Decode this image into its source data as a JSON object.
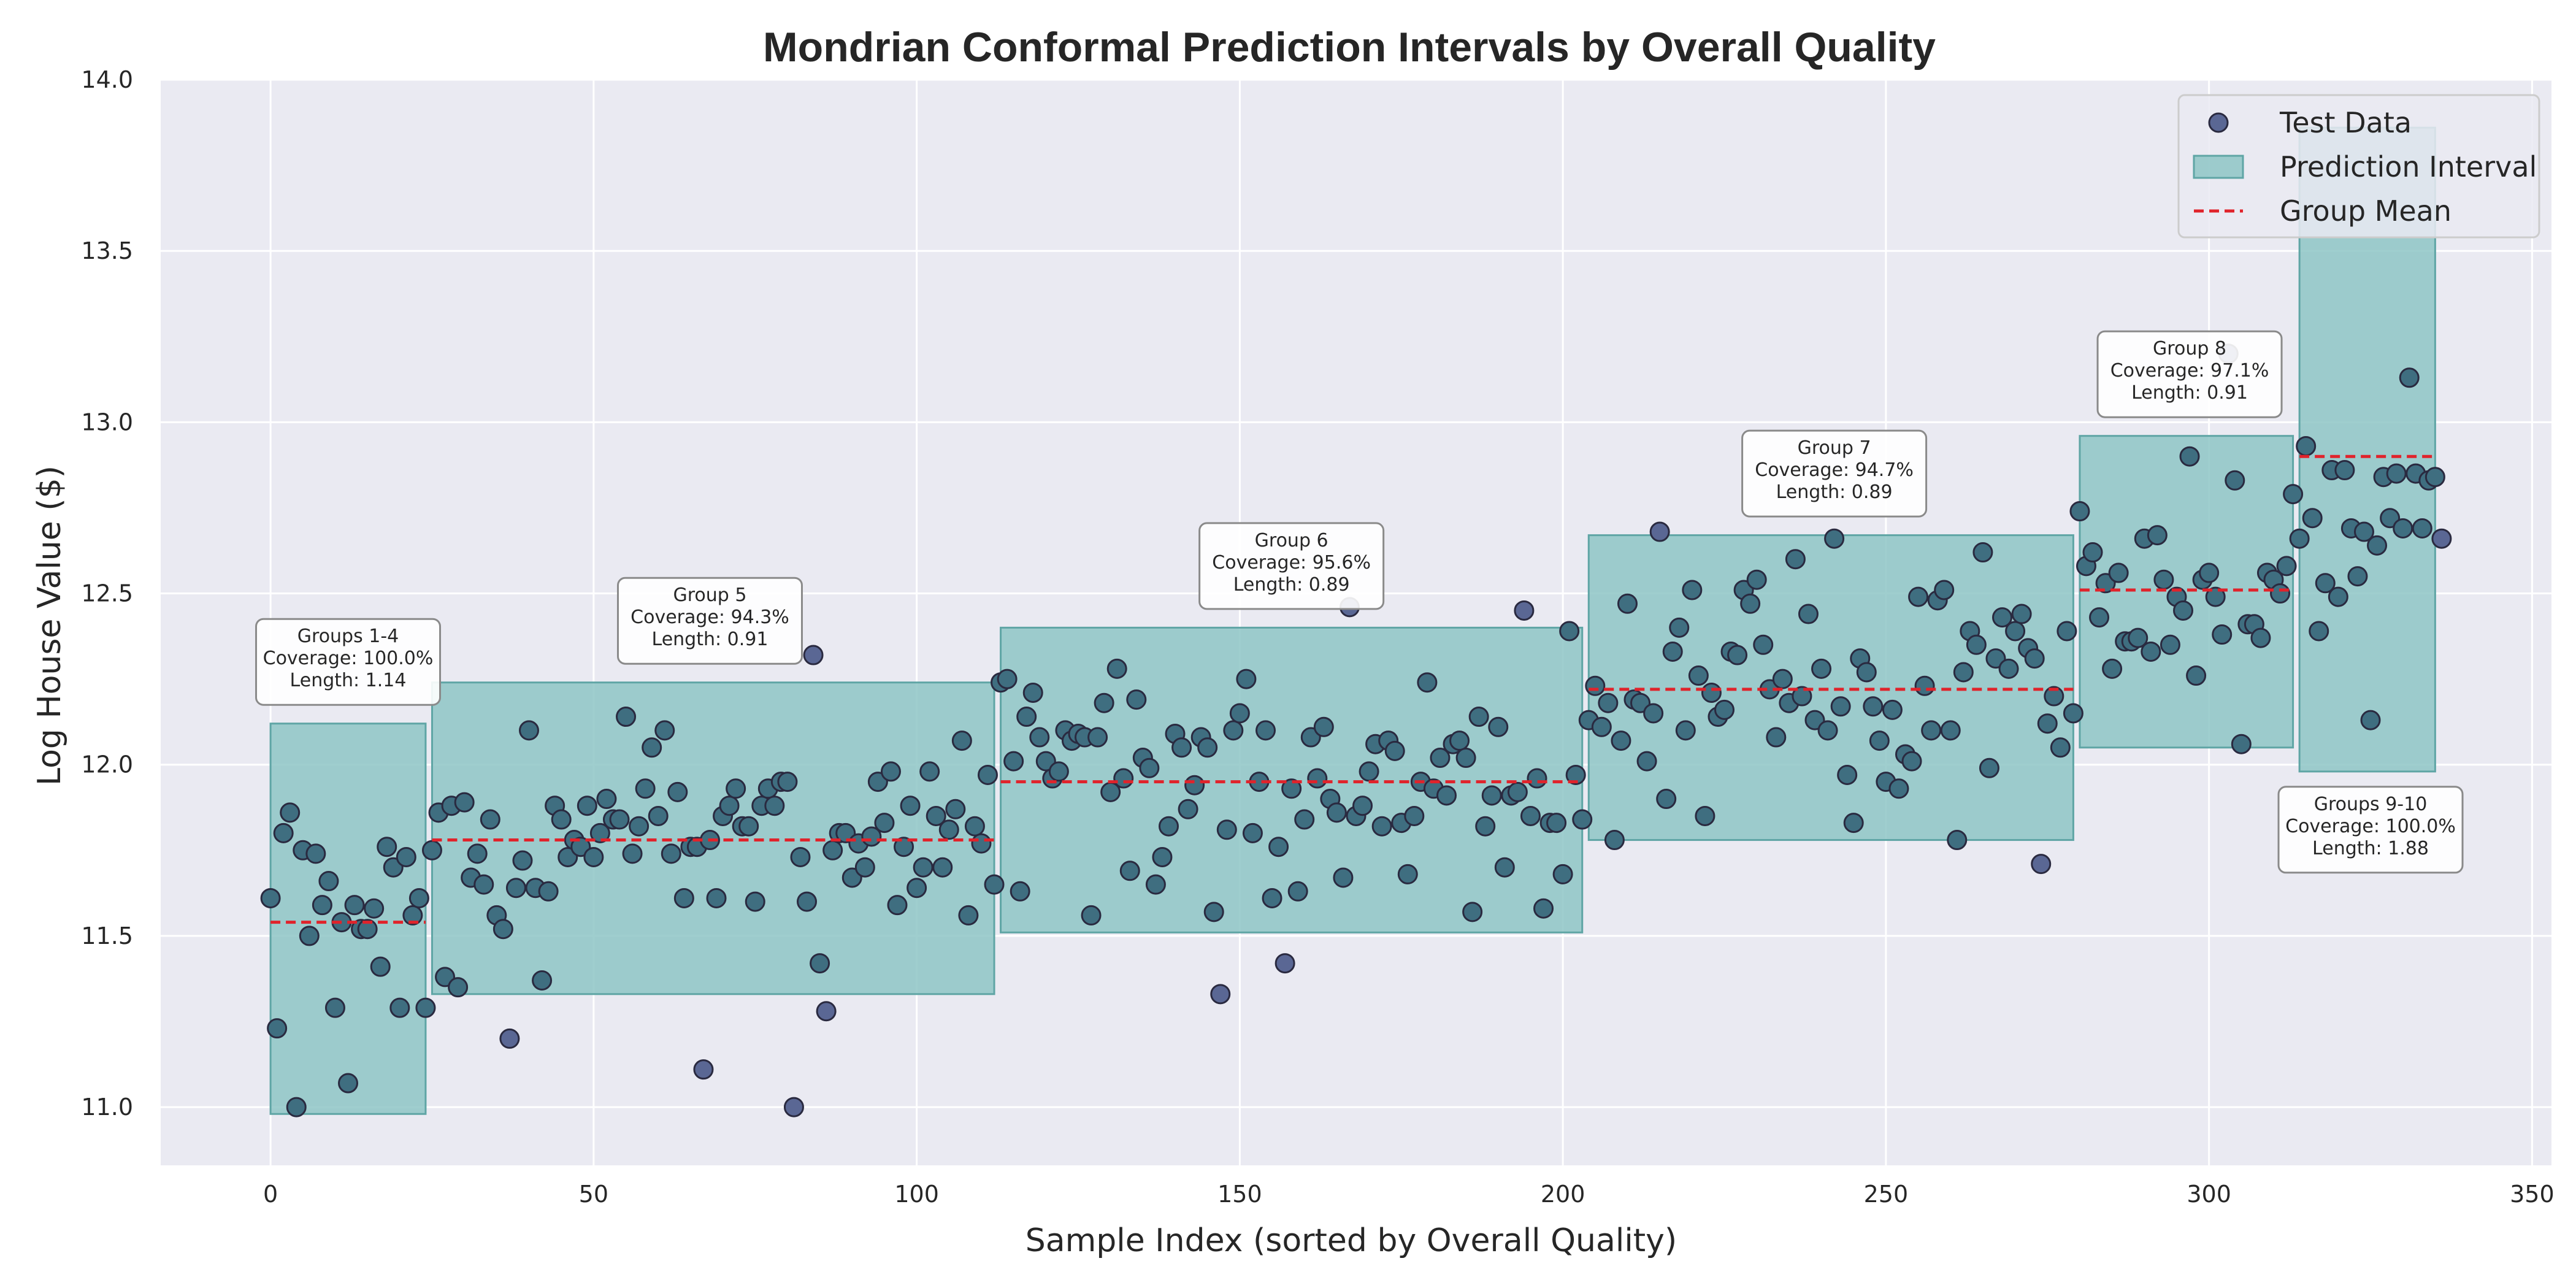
{
  "chart_data": {
    "type": "scatter",
    "title": "Mondrian Conformal Prediction Intervals by Overall Quality",
    "xlabel": "Sample Index (sorted by Overall Quality)",
    "ylabel": "Log House Value ($)",
    "xlim": [
      -17,
      353
    ],
    "ylim": [
      10.83,
      14.0
    ],
    "xticks": [
      0,
      50,
      100,
      150,
      200,
      250,
      300,
      350
    ],
    "yticks": [
      11.0,
      11.5,
      12.0,
      12.5,
      13.0,
      13.5,
      14.0
    ],
    "grid": true,
    "legend_position": "upper right",
    "legend": [
      {
        "label": "Test Data",
        "kind": "marker"
      },
      {
        "label": "Prediction Interval",
        "kind": "patch"
      },
      {
        "label": "Group Mean",
        "kind": "dashed-line"
      }
    ],
    "colors": {
      "background": "#eaeaf2",
      "grid": "#ffffff",
      "points": "#5a6794",
      "point_edge": "#2a2a40",
      "interval_fill": "#8ec5c5",
      "interval_edge": "#5fa5a5",
      "mean_line": "#e0232b"
    },
    "groups": [
      {
        "label": "Groups 1-4",
        "x_start": 0,
        "x_end": 24,
        "lower": 10.98,
        "upper": 12.12,
        "mean": 11.54,
        "annotation": [
          "Groups 1-4",
          "Coverage: 100.0%",
          "Length: 1.14"
        ],
        "annotation_x": 12,
        "annotation_y": 12.3
      },
      {
        "label": "Group 5",
        "x_start": 25,
        "x_end": 112,
        "lower": 11.33,
        "upper": 12.24,
        "mean": 11.78,
        "annotation": [
          "Group 5",
          "Coverage: 94.3%",
          "Length: 0.91"
        ],
        "annotation_x": 68,
        "annotation_y": 12.42
      },
      {
        "label": "Group 6",
        "x_start": 113,
        "x_end": 203,
        "lower": 11.51,
        "upper": 12.4,
        "mean": 11.95,
        "annotation": [
          "Group 6",
          "Coverage: 95.6%",
          "Length: 0.89"
        ],
        "annotation_x": 158,
        "annotation_y": 12.58
      },
      {
        "label": "Group 7",
        "x_start": 204,
        "x_end": 279,
        "lower": 11.78,
        "upper": 12.67,
        "mean": 12.22,
        "annotation": [
          "Group 7",
          "Coverage: 94.7%",
          "Length: 0.89"
        ],
        "annotation_x": 242,
        "annotation_y": 12.85
      },
      {
        "label": "Group 8",
        "x_start": 280,
        "x_end": 313,
        "lower": 12.05,
        "upper": 12.96,
        "mean": 12.51,
        "annotation": [
          "Group 8",
          "Coverage: 97.1%",
          "Length: 0.91"
        ],
        "annotation_x": 297,
        "annotation_y": 13.14
      },
      {
        "label": "Groups 9-10",
        "x_start": 314,
        "x_end": 335,
        "lower": 11.98,
        "upper": 13.86,
        "mean": 12.9,
        "annotation": [
          "Groups 9-10",
          "Coverage: 100.0%",
          "Length: 1.88"
        ],
        "annotation_x": 325,
        "annotation_y": 11.81
      }
    ],
    "points": [
      [
        0,
        11.61
      ],
      [
        1,
        11.23
      ],
      [
        2,
        11.8
      ],
      [
        3,
        11.86
      ],
      [
        4,
        11.0
      ],
      [
        5,
        11.75
      ],
      [
        6,
        11.5
      ],
      [
        7,
        11.74
      ],
      [
        8,
        11.59
      ],
      [
        9,
        11.66
      ],
      [
        10,
        11.29
      ],
      [
        11,
        11.54
      ],
      [
        12,
        11.07
      ],
      [
        13,
        11.59
      ],
      [
        14,
        11.52
      ],
      [
        15,
        11.52
      ],
      [
        16,
        11.58
      ],
      [
        17,
        11.41
      ],
      [
        18,
        11.76
      ],
      [
        19,
        11.7
      ],
      [
        20,
        11.29
      ],
      [
        21,
        11.73
      ],
      [
        22,
        11.56
      ],
      [
        23,
        11.61
      ],
      [
        24,
        11.29
      ],
      [
        25,
        11.75
      ],
      [
        26,
        11.86
      ],
      [
        27,
        11.38
      ],
      [
        28,
        11.88
      ],
      [
        29,
        11.35
      ],
      [
        30,
        11.89
      ],
      [
        31,
        11.67
      ],
      [
        32,
        11.74
      ],
      [
        33,
        11.65
      ],
      [
        34,
        11.84
      ],
      [
        35,
        11.56
      ],
      [
        36,
        11.52
      ],
      [
        37,
        11.2
      ],
      [
        38,
        11.64
      ],
      [
        39,
        11.72
      ],
      [
        40,
        12.1
      ],
      [
        41,
        11.64
      ],
      [
        42,
        11.37
      ],
      [
        43,
        11.63
      ],
      [
        44,
        11.88
      ],
      [
        45,
        11.84
      ],
      [
        46,
        11.73
      ],
      [
        47,
        11.78
      ],
      [
        48,
        11.76
      ],
      [
        49,
        11.88
      ],
      [
        50,
        11.73
      ],
      [
        51,
        11.8
      ],
      [
        52,
        11.9
      ],
      [
        53,
        11.84
      ],
      [
        54,
        11.84
      ],
      [
        55,
        12.14
      ],
      [
        56,
        11.74
      ],
      [
        57,
        11.82
      ],
      [
        58,
        11.93
      ],
      [
        59,
        12.05
      ],
      [
        60,
        11.85
      ],
      [
        61,
        12.1
      ],
      [
        62,
        11.74
      ],
      [
        63,
        11.92
      ],
      [
        64,
        11.61
      ],
      [
        65,
        11.76
      ],
      [
        66,
        11.76
      ],
      [
        67,
        11.11
      ],
      [
        68,
        11.78
      ],
      [
        69,
        11.61
      ],
      [
        70,
        11.85
      ],
      [
        71,
        11.88
      ],
      [
        72,
        11.93
      ],
      [
        73,
        11.82
      ],
      [
        74,
        11.82
      ],
      [
        75,
        11.6
      ],
      [
        76,
        11.88
      ],
      [
        77,
        11.93
      ],
      [
        78,
        11.88
      ],
      [
        79,
        11.95
      ],
      [
        80,
        11.95
      ],
      [
        81,
        11.0
      ],
      [
        82,
        11.73
      ],
      [
        83,
        11.6
      ],
      [
        84,
        12.32
      ],
      [
        85,
        11.42
      ],
      [
        86,
        11.28
      ],
      [
        87,
        11.75
      ],
      [
        88,
        11.8
      ],
      [
        89,
        11.8
      ],
      [
        90,
        11.67
      ],
      [
        91,
        11.77
      ],
      [
        92,
        11.7
      ],
      [
        93,
        11.79
      ],
      [
        94,
        11.95
      ],
      [
        95,
        11.83
      ],
      [
        96,
        11.98
      ],
      [
        97,
        11.59
      ],
      [
        98,
        11.76
      ],
      [
        99,
        11.88
      ],
      [
        100,
        11.64
      ],
      [
        101,
        11.7
      ],
      [
        102,
        11.98
      ],
      [
        103,
        11.85
      ],
      [
        104,
        11.7
      ],
      [
        105,
        11.81
      ],
      [
        106,
        11.87
      ],
      [
        107,
        12.07
      ],
      [
        108,
        11.56
      ],
      [
        109,
        11.82
      ],
      [
        110,
        11.77
      ],
      [
        111,
        11.97
      ],
      [
        112,
        11.65
      ],
      [
        113,
        12.24
      ],
      [
        114,
        12.25
      ],
      [
        115,
        12.01
      ],
      [
        116,
        11.63
      ],
      [
        117,
        12.14
      ],
      [
        118,
        12.21
      ],
      [
        119,
        12.08
      ],
      [
        120,
        12.01
      ],
      [
        121,
        11.96
      ],
      [
        122,
        11.98
      ],
      [
        123,
        12.1
      ],
      [
        124,
        12.07
      ],
      [
        125,
        12.09
      ],
      [
        126,
        12.08
      ],
      [
        127,
        11.56
      ],
      [
        128,
        12.08
      ],
      [
        129,
        12.18
      ],
      [
        130,
        11.92
      ],
      [
        131,
        12.28
      ],
      [
        132,
        11.96
      ],
      [
        133,
        11.69
      ],
      [
        134,
        12.19
      ],
      [
        135,
        12.02
      ],
      [
        136,
        11.99
      ],
      [
        137,
        11.65
      ],
      [
        138,
        11.73
      ],
      [
        139,
        11.82
      ],
      [
        140,
        12.09
      ],
      [
        141,
        12.05
      ],
      [
        142,
        11.87
      ],
      [
        143,
        11.94
      ],
      [
        144,
        12.08
      ],
      [
        145,
        12.05
      ],
      [
        146,
        11.57
      ],
      [
        147,
        11.33
      ],
      [
        148,
        11.81
      ],
      [
        149,
        12.1
      ],
      [
        150,
        12.15
      ],
      [
        151,
        12.25
      ],
      [
        152,
        11.8
      ],
      [
        153,
        11.95
      ],
      [
        154,
        12.1
      ],
      [
        155,
        11.61
      ],
      [
        156,
        11.76
      ],
      [
        157,
        11.42
      ],
      [
        158,
        11.93
      ],
      [
        159,
        11.63
      ],
      [
        160,
        11.84
      ],
      [
        161,
        12.08
      ],
      [
        162,
        11.96
      ],
      [
        163,
        12.11
      ],
      [
        164,
        11.9
      ],
      [
        165,
        11.86
      ],
      [
        166,
        11.67
      ],
      [
        167,
        12.46
      ],
      [
        168,
        11.85
      ],
      [
        169,
        11.88
      ],
      [
        170,
        11.98
      ],
      [
        171,
        12.06
      ],
      [
        172,
        11.82
      ],
      [
        173,
        12.07
      ],
      [
        174,
        12.04
      ],
      [
        175,
        11.83
      ],
      [
        176,
        11.68
      ],
      [
        177,
        11.85
      ],
      [
        178,
        11.95
      ],
      [
        179,
        12.24
      ],
      [
        180,
        11.93
      ],
      [
        181,
        12.02
      ],
      [
        182,
        11.91
      ],
      [
        183,
        12.06
      ],
      [
        184,
        12.07
      ],
      [
        185,
        12.02
      ],
      [
        186,
        11.57
      ],
      [
        187,
        12.14
      ],
      [
        188,
        11.82
      ],
      [
        189,
        11.91
      ],
      [
        190,
        12.11
      ],
      [
        191,
        11.7
      ],
      [
        192,
        11.91
      ],
      [
        193,
        11.92
      ],
      [
        194,
        12.45
      ],
      [
        195,
        11.85
      ],
      [
        196,
        11.96
      ],
      [
        197,
        11.58
      ],
      [
        198,
        11.83
      ],
      [
        199,
        11.83
      ],
      [
        200,
        11.68
      ],
      [
        201,
        12.39
      ],
      [
        202,
        11.97
      ],
      [
        203,
        11.84
      ],
      [
        204,
        12.13
      ],
      [
        205,
        12.23
      ],
      [
        206,
        12.11
      ],
      [
        207,
        12.18
      ],
      [
        208,
        11.78
      ],
      [
        209,
        12.07
      ],
      [
        210,
        12.47
      ],
      [
        211,
        12.19
      ],
      [
        212,
        12.18
      ],
      [
        213,
        12.01
      ],
      [
        214,
        12.15
      ],
      [
        215,
        12.68
      ],
      [
        216,
        11.9
      ],
      [
        217,
        12.33
      ],
      [
        218,
        12.4
      ],
      [
        219,
        12.1
      ],
      [
        220,
        12.51
      ],
      [
        221,
        12.26
      ],
      [
        222,
        11.85
      ],
      [
        223,
        12.21
      ],
      [
        224,
        12.14
      ],
      [
        225,
        12.16
      ],
      [
        226,
        12.33
      ],
      [
        227,
        12.32
      ],
      [
        228,
        12.51
      ],
      [
        229,
        12.47
      ],
      [
        230,
        12.54
      ],
      [
        231,
        12.35
      ],
      [
        232,
        12.22
      ],
      [
        233,
        12.08
      ],
      [
        234,
        12.25
      ],
      [
        235,
        12.18
      ],
      [
        236,
        12.6
      ],
      [
        237,
        12.2
      ],
      [
        238,
        12.44
      ],
      [
        239,
        12.13
      ],
      [
        240,
        12.28
      ],
      [
        241,
        12.1
      ],
      [
        242,
        12.66
      ],
      [
        243,
        12.17
      ],
      [
        244,
        11.97
      ],
      [
        245,
        11.83
      ],
      [
        246,
        12.31
      ],
      [
        247,
        12.27
      ],
      [
        248,
        12.17
      ],
      [
        249,
        12.07
      ],
      [
        250,
        11.95
      ],
      [
        251,
        12.16
      ],
      [
        252,
        11.93
      ],
      [
        253,
        12.03
      ],
      [
        254,
        12.01
      ],
      [
        255,
        12.49
      ],
      [
        256,
        12.23
      ],
      [
        257,
        12.1
      ],
      [
        258,
        12.48
      ],
      [
        259,
        12.51
      ],
      [
        260,
        12.1
      ],
      [
        261,
        11.78
      ],
      [
        262,
        12.27
      ],
      [
        263,
        12.39
      ],
      [
        264,
        12.35
      ],
      [
        265,
        12.62
      ],
      [
        266,
        11.99
      ],
      [
        267,
        12.31
      ],
      [
        268,
        12.43
      ],
      [
        269,
        12.28
      ],
      [
        270,
        12.39
      ],
      [
        271,
        12.44
      ],
      [
        272,
        12.34
      ],
      [
        273,
        12.31
      ],
      [
        274,
        11.71
      ],
      [
        275,
        12.12
      ],
      [
        276,
        12.2
      ],
      [
        277,
        12.05
      ],
      [
        278,
        12.39
      ],
      [
        279,
        12.15
      ],
      [
        280,
        12.74
      ],
      [
        281,
        12.58
      ],
      [
        282,
        12.62
      ],
      [
        283,
        12.43
      ],
      [
        284,
        12.53
      ],
      [
        285,
        12.28
      ],
      [
        286,
        12.56
      ],
      [
        287,
        12.36
      ],
      [
        288,
        12.36
      ],
      [
        289,
        12.37
      ],
      [
        290,
        12.66
      ],
      [
        291,
        12.33
      ],
      [
        292,
        12.67
      ],
      [
        293,
        12.54
      ],
      [
        294,
        12.35
      ],
      [
        295,
        12.49
      ],
      [
        296,
        12.45
      ],
      [
        297,
        12.9
      ],
      [
        298,
        12.26
      ],
      [
        299,
        12.54
      ],
      [
        300,
        12.56
      ],
      [
        301,
        12.49
      ],
      [
        302,
        12.38
      ],
      [
        303,
        13.2
      ],
      [
        304,
        12.83
      ],
      [
        305,
        12.06
      ],
      [
        306,
        12.41
      ],
      [
        307,
        12.41
      ],
      [
        308,
        12.37
      ],
      [
        309,
        12.56
      ],
      [
        310,
        12.54
      ],
      [
        311,
        12.5
      ],
      [
        312,
        12.58
      ],
      [
        313,
        12.79
      ],
      [
        314,
        12.66
      ],
      [
        315,
        12.93
      ],
      [
        316,
        12.72
      ],
      [
        317,
        12.39
      ],
      [
        318,
        12.53
      ],
      [
        319,
        12.86
      ],
      [
        320,
        12.49
      ],
      [
        321,
        12.86
      ],
      [
        322,
        12.69
      ],
      [
        323,
        12.55
      ],
      [
        324,
        12.68
      ],
      [
        325,
        12.13
      ],
      [
        326,
        12.64
      ],
      [
        327,
        12.84
      ],
      [
        328,
        12.72
      ],
      [
        329,
        12.85
      ],
      [
        330,
        12.69
      ],
      [
        331,
        13.13
      ],
      [
        332,
        12.85
      ],
      [
        333,
        12.69
      ],
      [
        334,
        12.83
      ],
      [
        335,
        12.84
      ],
      [
        336,
        12.66
      ]
    ]
  }
}
